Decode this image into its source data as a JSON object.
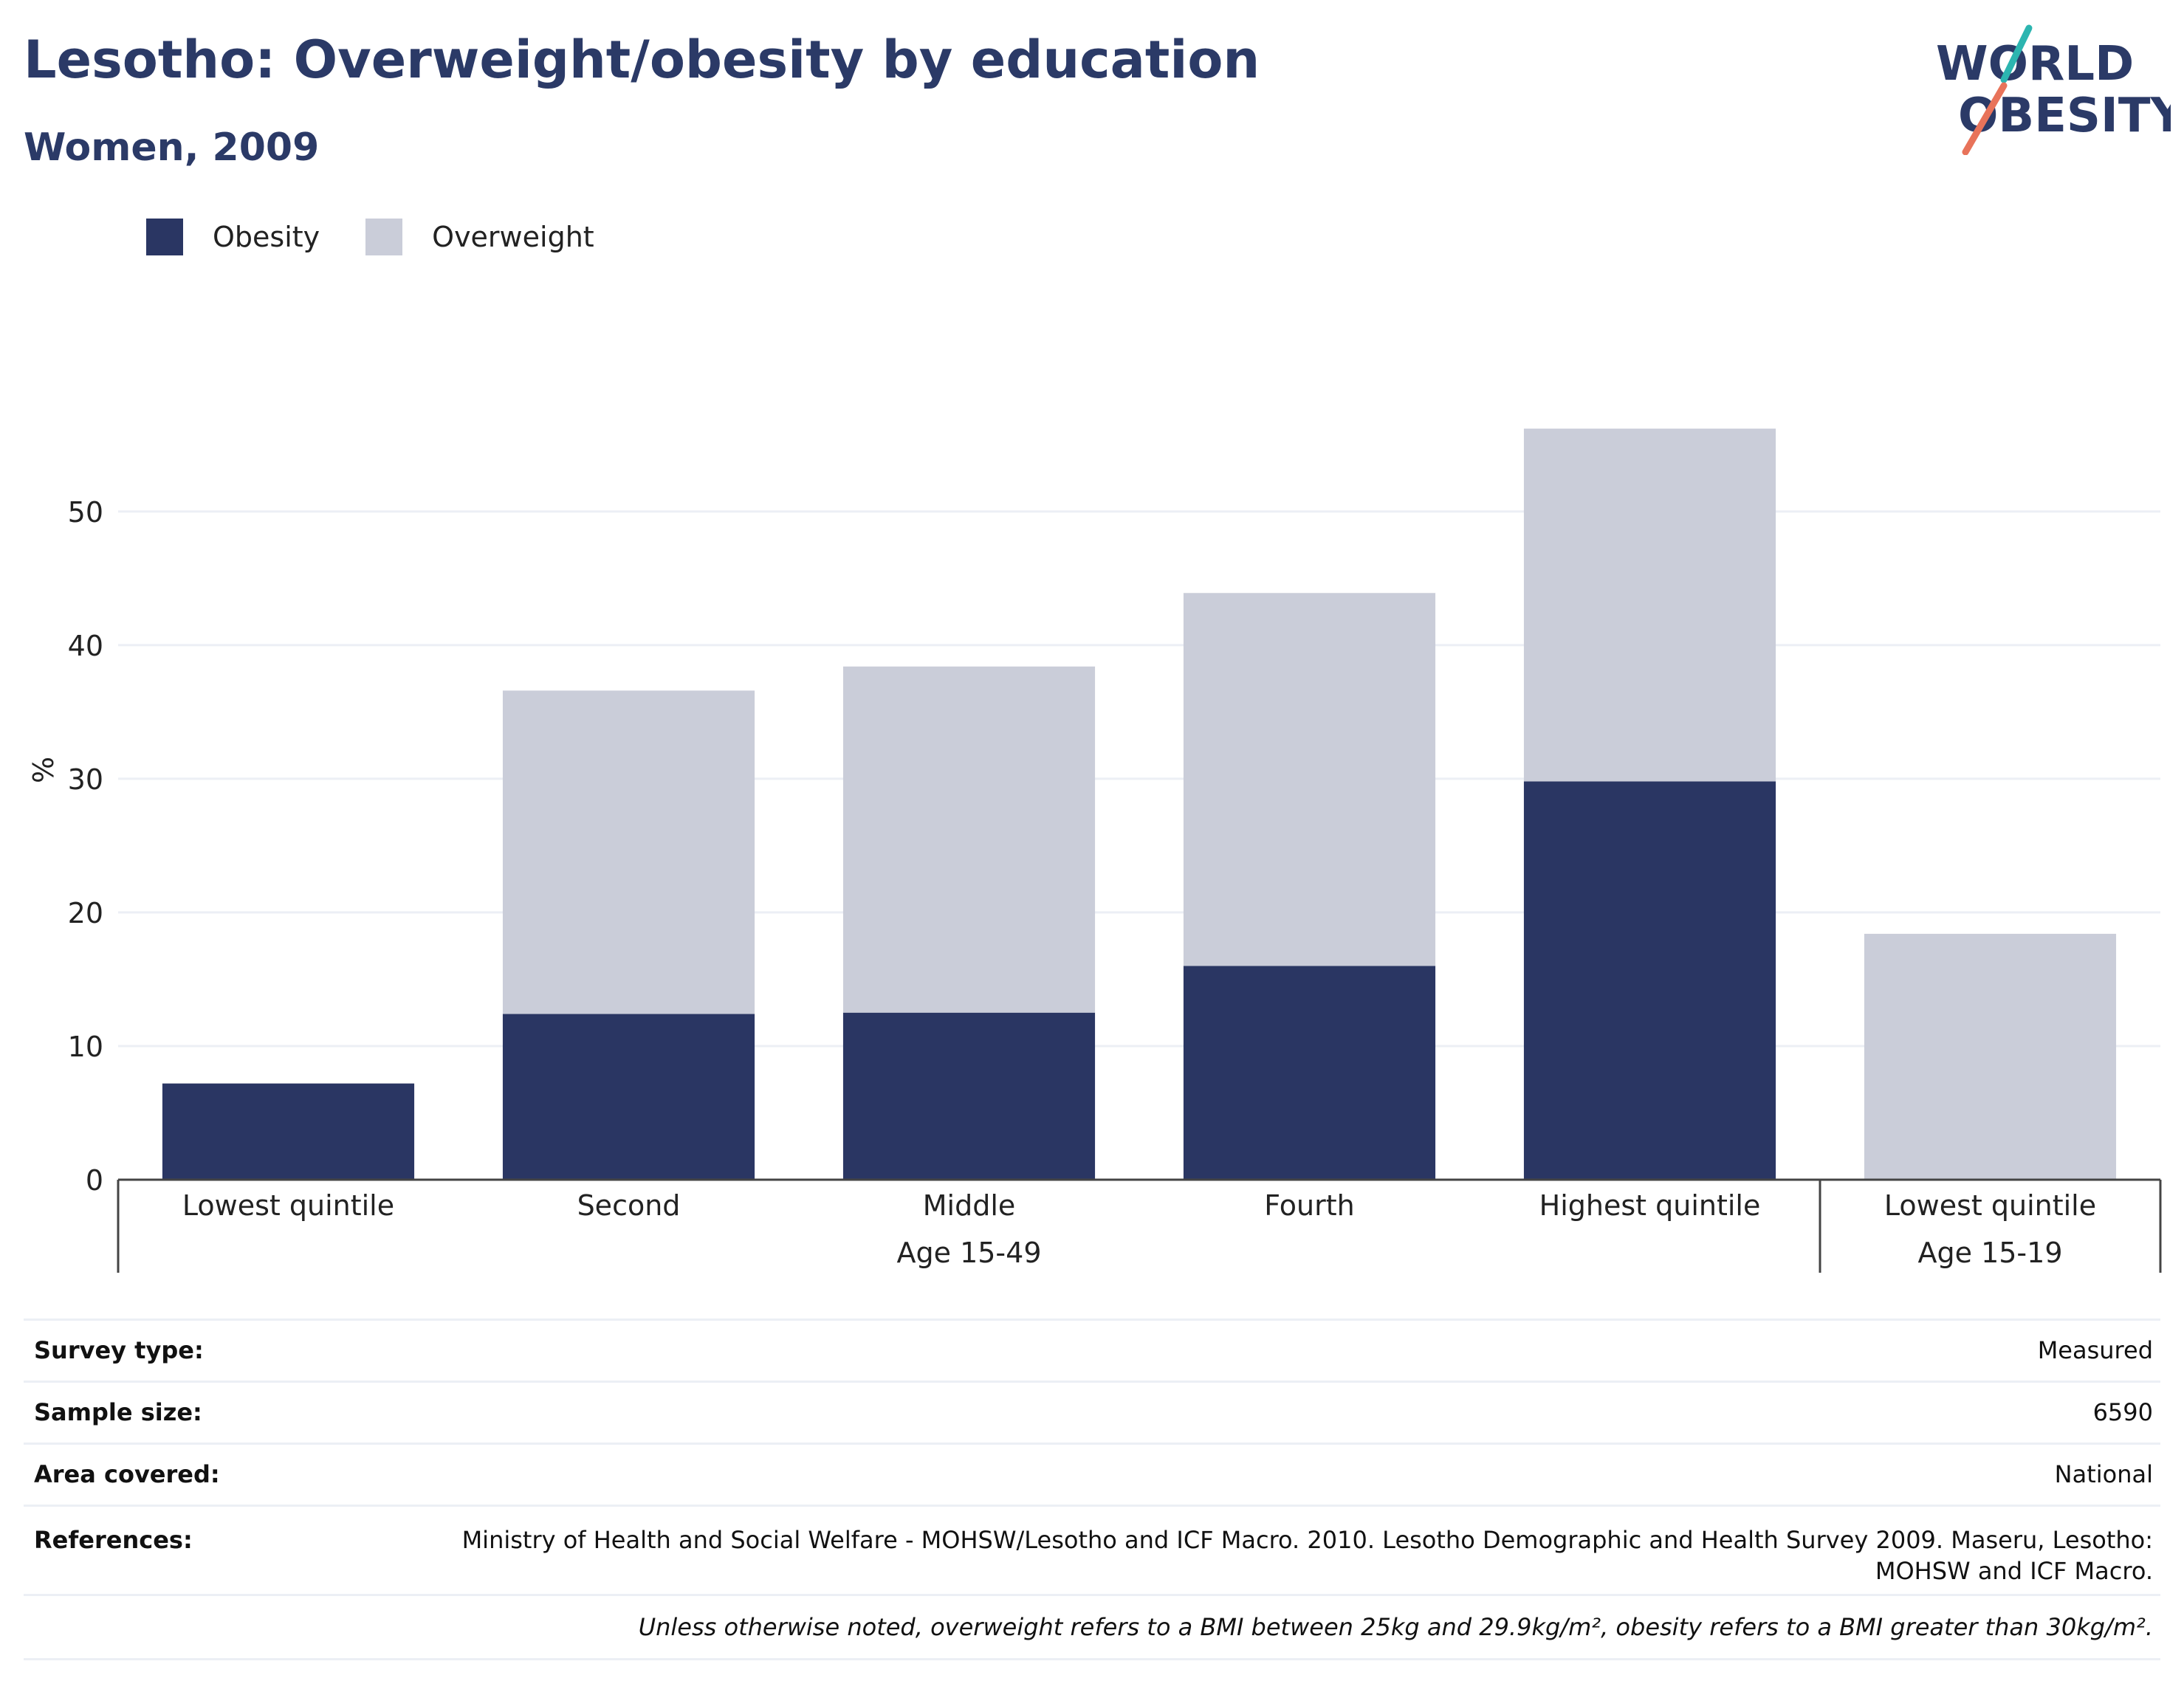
{
  "title": "Lesotho: Overweight/obesity by education",
  "subtitle": "Women, 2009",
  "logo": {
    "line1": "WORLD",
    "line2": "OBESITY",
    "accent_colors": [
      "#2cb5b0",
      "#e8735a"
    ]
  },
  "legend": [
    {
      "label": "Obesity",
      "color": "#2a3663"
    },
    {
      "label": "Overweight",
      "color": "#cacdd9"
    }
  ],
  "chart_data": {
    "type": "bar",
    "stacked": true,
    "ylabel": "%",
    "ylim": [
      0,
      58
    ],
    "yticks": [
      0,
      10,
      20,
      30,
      40,
      50
    ],
    "grid": true,
    "legend_position": "top-left",
    "categories": [
      "Lowest quintile",
      "Second",
      "Middle",
      "Fourth",
      "Highest quintile",
      "Lowest quintile"
    ],
    "groups": [
      {
        "label": "Age 15-49",
        "count": 5
      },
      {
        "label": "Age 15-19",
        "count": 1
      }
    ],
    "series": [
      {
        "name": "Obesity",
        "color": "#2a3663",
        "values": [
          7.2,
          12.4,
          12.5,
          16.0,
          29.8,
          0
        ]
      },
      {
        "name": "Overweight",
        "color": "#cacdd9",
        "values": [
          0,
          24.2,
          25.9,
          27.9,
          26.4,
          18.4
        ]
      }
    ]
  },
  "info": {
    "survey_type": {
      "label": "Survey type:",
      "value": "Measured"
    },
    "sample_size": {
      "label": "Sample size:",
      "value": "6590"
    },
    "area_covered": {
      "label": "Area covered:",
      "value": "National"
    },
    "references": {
      "label": "References:",
      "value": "Ministry of Health and Social Welfare - MOHSW/Lesotho and ICF Macro. 2010. Lesotho Demographic and Health Survey 2009. Maseru, Lesotho: MOHSW and ICF Macro."
    },
    "footnote": "Unless otherwise noted, overweight refers to a BMI between 25kg and 29.9kg/m², obesity refers to a BMI greater than 30kg/m²."
  }
}
